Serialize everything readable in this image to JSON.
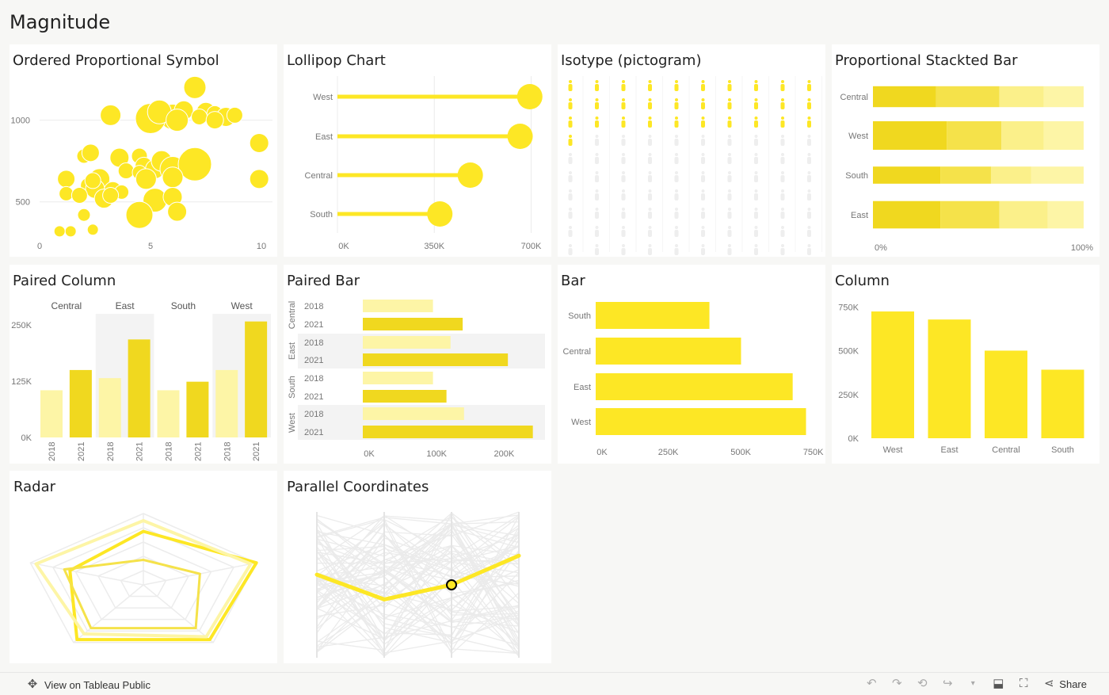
{
  "dashboard": {
    "title": "Magnitude"
  },
  "colors": {
    "yellow": "#fde725",
    "yellow_dark": "#f0d81f",
    "yellow_mid": "#f5e24a",
    "yellow_light": "#fbf08a",
    "yellow_pale": "#fdf5a6",
    "grid": "#ececec",
    "band": "#f3f3f3",
    "grey_line": "#e8e8e8"
  },
  "panels": {
    "symbol": {
      "title": "Ordered Proportional Symbol",
      "chart_data": {
        "type": "scatter",
        "x_ticks": [
          "0",
          "5",
          "10"
        ],
        "y_ticks": [
          "1000",
          "500"
        ],
        "xlim": [
          0,
          10.5
        ],
        "ylim": [
          300,
          1250
        ],
        "points": [
          [
            7.0,
            1200,
            14
          ],
          [
            6.0,
            1020,
            16
          ],
          [
            6.5,
            1060,
            12
          ],
          [
            7.5,
            1050,
            12
          ],
          [
            7.9,
            1040,
            10
          ],
          [
            8.4,
            1020,
            12
          ],
          [
            8.8,
            1030,
            10
          ],
          [
            3.2,
            1030,
            13
          ],
          [
            5.0,
            1010,
            19
          ],
          [
            5.4,
            1050,
            15
          ],
          [
            6.2,
            1000,
            14
          ],
          [
            7.2,
            1020,
            10
          ],
          [
            7.9,
            1000,
            11
          ],
          [
            9.9,
            860,
            12
          ],
          [
            9.9,
            640,
            12
          ],
          [
            2.0,
            780,
            9
          ],
          [
            2.3,
            800,
            11
          ],
          [
            3.6,
            770,
            12
          ],
          [
            4.5,
            780,
            10
          ],
          [
            4.7,
            720,
            11
          ],
          [
            5.2,
            700,
            12
          ],
          [
            5.5,
            750,
            13
          ],
          [
            6.0,
            700,
            16
          ],
          [
            7.0,
            730,
            21
          ],
          [
            2.7,
            640,
            13
          ],
          [
            3.9,
            690,
            10
          ],
          [
            4.5,
            680,
            9
          ],
          [
            4.8,
            640,
            13
          ],
          [
            6.0,
            650,
            13
          ],
          [
            1.2,
            640,
            11
          ],
          [
            2.2,
            600,
            10
          ],
          [
            2.5,
            580,
            12
          ],
          [
            2.4,
            630,
            10
          ],
          [
            3.3,
            570,
            11
          ],
          [
            3.7,
            560,
            9
          ],
          [
            1.2,
            550,
            9
          ],
          [
            1.8,
            540,
            10
          ],
          [
            2.9,
            520,
            12
          ],
          [
            3.2,
            540,
            10
          ],
          [
            5.2,
            510,
            15
          ],
          [
            6.0,
            530,
            12
          ],
          [
            6.2,
            440,
            12
          ],
          [
            4.5,
            420,
            17
          ],
          [
            2.0,
            420,
            8
          ],
          [
            2.4,
            330,
            7
          ],
          [
            1.4,
            320,
            7
          ],
          [
            0.9,
            320,
            7
          ]
        ]
      }
    },
    "lollipop": {
      "title": "Lollipop Chart",
      "chart_data": {
        "type": "bar",
        "categories": [
          "West",
          "East",
          "Central",
          "South"
        ],
        "values": [
          695000,
          660000,
          480000,
          370000
        ],
        "x_ticks": [
          "0K",
          "350K",
          "700K"
        ],
        "xlim": [
          0,
          750000
        ]
      }
    },
    "isotype": {
      "title": "Isotype (pictogram)",
      "chart_data": {
        "type": "table",
        "columns": 10,
        "rows": 10,
        "filled_icons": 31
      }
    },
    "stacked": {
      "title": "Proportional Stackted Bar",
      "chart_data": {
        "type": "bar",
        "categories": [
          "Central",
          "West",
          "South",
          "East"
        ],
        "segments": [
          [
            0.3,
            0.3,
            0.21,
            0.19
          ],
          [
            0.35,
            0.26,
            0.2,
            0.19
          ],
          [
            0.32,
            0.24,
            0.19,
            0.25
          ],
          [
            0.32,
            0.28,
            0.23,
            0.17
          ]
        ],
        "thickness": [
          0.55,
          0.75,
          0.45,
          0.72
        ],
        "x_ticks": [
          "0%",
          "100%"
        ]
      }
    },
    "paired_column": {
      "title": "Paired Column",
      "chart_data": {
        "type": "bar",
        "categories": [
          "Central",
          "East",
          "South",
          "West"
        ],
        "series": [
          {
            "name": "2018",
            "values": [
              105000,
              132000,
              105000,
              150000
            ]
          },
          {
            "name": "2021",
            "values": [
              150000,
              218000,
              124000,
              258000
            ]
          }
        ],
        "y_ticks": [
          "250K",
          "125K",
          "0K"
        ],
        "ylim": [
          0,
          275000
        ]
      }
    },
    "paired_bar": {
      "title": "Paired Bar",
      "chart_data": {
        "type": "bar",
        "categories": [
          "Central",
          "East",
          "South",
          "West"
        ],
        "series": [
          {
            "name": "2018",
            "values": [
              104000,
              130000,
              104000,
              150000
            ]
          },
          {
            "name": "2021",
            "values": [
              148000,
              215000,
              124000,
              252000
            ]
          }
        ],
        "x_ticks": [
          "0K",
          "100K",
          "200K"
        ],
        "xlim": [
          0,
          270000
        ]
      }
    },
    "bar": {
      "title": "Bar",
      "chart_data": {
        "type": "bar",
        "categories": [
          "South",
          "Central",
          "East",
          "West"
        ],
        "values": [
          392000,
          501000,
          679000,
          725000
        ],
        "x_ticks": [
          "0K",
          "250K",
          "500K",
          "750K"
        ],
        "xlim": [
          0,
          770000
        ]
      }
    },
    "column": {
      "title": "Column",
      "chart_data": {
        "type": "bar",
        "categories": [
          "West",
          "East",
          "Central",
          "South"
        ],
        "values": [
          725000,
          679000,
          501000,
          392000
        ],
        "y_ticks": [
          "750K",
          "500K",
          "250K",
          "0K"
        ],
        "ylim": [
          0,
          775000
        ]
      }
    },
    "radar": {
      "title": "Radar",
      "chart_data": {
        "type": "line",
        "axes": 5,
        "series": [
          {
            "values": [
              0.75,
              1.0,
              0.95,
              0.95,
              0.65
            ]
          },
          {
            "values": [
              0.9,
              0.95,
              0.9,
              0.85,
              0.95
            ]
          },
          {
            "values": [
              0.35,
              0.5,
              0.75,
              0.75,
              0.7
            ]
          }
        ]
      }
    },
    "parallel": {
      "title": "Parallel Coordinates",
      "chart_data": {
        "type": "line",
        "axes": 4,
        "highlight": [
          0.57,
          0.4,
          0.5,
          0.7
        ]
      }
    }
  },
  "toolbar": {
    "view_label": "View on Tableau Public",
    "share_label": "Share",
    "icons": [
      "undo-icon",
      "redo-icon",
      "revert-icon",
      "refresh-icon",
      "pause-icon",
      "download-icon",
      "fullscreen-icon",
      "share-icon"
    ]
  }
}
